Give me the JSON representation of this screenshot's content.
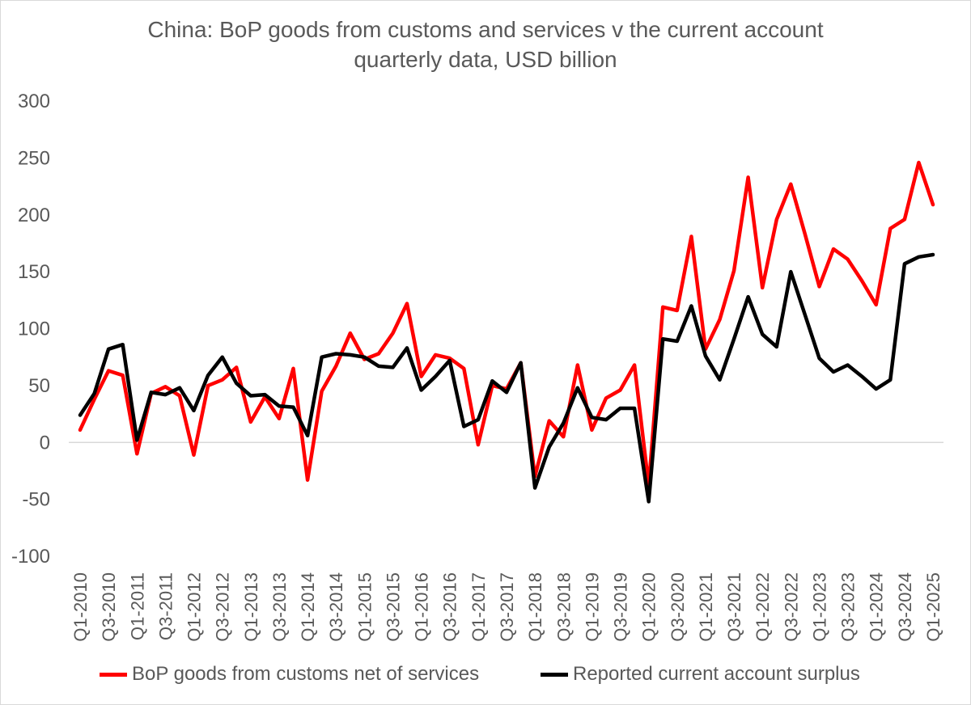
{
  "chart_data": {
    "type": "line",
    "title": "China: BoP goods from customs and services v the current account",
    "subtitle": "quarterly data, USD billion",
    "xlabel": "",
    "ylabel": "",
    "ylim": [
      -100,
      300
    ],
    "yticks": [
      -100,
      -50,
      0,
      50,
      100,
      150,
      200,
      250,
      300
    ],
    "grid": false,
    "legend_position": "bottom",
    "categories": [
      "Q1-2010",
      "Q2-2010",
      "Q3-2010",
      "Q4-2010",
      "Q1-2011",
      "Q2-2011",
      "Q3-2011",
      "Q4-2011",
      "Q1-2012",
      "Q2-2012",
      "Q3-2012",
      "Q4-2012",
      "Q1-2013",
      "Q2-2013",
      "Q3-2013",
      "Q4-2013",
      "Q1-2014",
      "Q2-2014",
      "Q3-2014",
      "Q4-2014",
      "Q1-2015",
      "Q2-2015",
      "Q3-2015",
      "Q4-2015",
      "Q1-2016",
      "Q2-2016",
      "Q3-2016",
      "Q4-2016",
      "Q1-2017",
      "Q2-2017",
      "Q3-2017",
      "Q4-2017",
      "Q1-2018",
      "Q2-2018",
      "Q3-2018",
      "Q4-2018",
      "Q1-2019",
      "Q2-2019",
      "Q3-2019",
      "Q4-2019",
      "Q1-2020",
      "Q2-2020",
      "Q3-2020",
      "Q4-2020",
      "Q1-2021",
      "Q2-2021",
      "Q3-2021",
      "Q4-2021",
      "Q1-2022",
      "Q2-2022",
      "Q3-2022",
      "Q4-2022",
      "Q1-2023",
      "Q2-2023",
      "Q3-2023",
      "Q4-2023",
      "Q1-2024",
      "Q2-2024",
      "Q3-2024",
      "Q4-2024",
      "Q1-2025"
    ],
    "x_tick_labels": [
      "Q1-2010",
      "Q3-2010",
      "Q1-2011",
      "Q3-2011",
      "Q1-2012",
      "Q3-2012",
      "Q1-2013",
      "Q3-2013",
      "Q1-2014",
      "Q3-2014",
      "Q1-2015",
      "Q3-2015",
      "Q1-2016",
      "Q3-2016",
      "Q1-2017",
      "Q3-2017",
      "Q1-2018",
      "Q3-2018",
      "Q1-2019",
      "Q3-2019",
      "Q1-2020",
      "Q3-2020",
      "Q1-2021",
      "Q3-2021",
      "Q1-2022",
      "Q3-2022",
      "Q1-2023",
      "Q3-2023",
      "Q1-2024",
      "Q3-2024",
      "Q1-2025"
    ],
    "series": [
      {
        "name": "BoP goods from customs net of services",
        "color": "#ff0000",
        "values": [
          11,
          38,
          63,
          59,
          -10,
          43,
          49,
          41,
          -11,
          50,
          55,
          66,
          18,
          40,
          21,
          65,
          -33,
          45,
          67,
          96,
          73,
          78,
          96,
          122,
          58,
          77,
          74,
          65,
          -2,
          50,
          47,
          70,
          -30,
          19,
          5,
          68,
          11,
          39,
          46,
          68,
          -38,
          119,
          116,
          181,
          82,
          108,
          151,
          233,
          136,
          196,
          227,
          183,
          137,
          170,
          161,
          142,
          121,
          188,
          196,
          246,
          209
        ]
      },
      {
        "name": "Reported current account surplus",
        "color": "#000000",
        "values": [
          24,
          43,
          82,
          86,
          2,
          44,
          42,
          48,
          28,
          59,
          75,
          52,
          41,
          42,
          32,
          31,
          6,
          75,
          78,
          77,
          75,
          67,
          66,
          83,
          46,
          58,
          72,
          14,
          20,
          54,
          44,
          70,
          -40,
          -4,
          17,
          48,
          22,
          20,
          30,
          30,
          -52,
          91,
          89,
          120,
          76,
          55,
          91,
          128,
          95,
          84,
          150,
          112,
          74,
          62,
          68,
          58,
          47,
          55,
          157,
          163,
          165
        ]
      }
    ]
  }
}
